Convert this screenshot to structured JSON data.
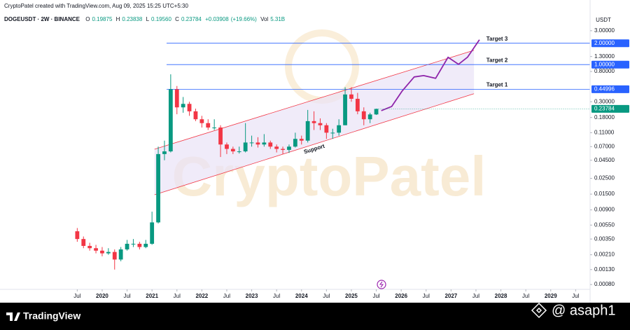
{
  "chart_data": {
    "type": "candlestick",
    "attribution": "CryptoPatel created with TradingView.com, Aug 09, 2025 15:25 UTC+5:30",
    "symbol": "DOGEUSDT · 2W · BINANCE",
    "legend_names": [
      "O",
      "H",
      "L",
      "C"
    ],
    "legend_value_labels": [
      "0.19875",
      "0.23838",
      "0.19560",
      "0.23784"
    ],
    "change": "+0.03908",
    "change_pct": "(+19.66%)",
    "volume_name": "Vol",
    "volume": "5.31B",
    "currency": "USDT",
    "watermark": "CryptoPatel",
    "brand": "TradingView",
    "credit": "@ asaph1",
    "log": true,
    "grid": false,
    "up_color": "#089981",
    "down_color": "#f23645",
    "x": [
      2019.5,
      2019.625,
      2019.75,
      2019.875,
      2020,
      2020.125,
      2020.25,
      2020.375,
      2020.5,
      2020.625,
      2020.75,
      2020.875,
      2021,
      2021.125,
      2021.25,
      2021.375,
      2021.5,
      2021.625,
      2021.75,
      2021.875,
      2022,
      2022.125,
      2022.25,
      2022.375,
      2022.5,
      2022.625,
      2022.75,
      2022.875,
      2023,
      2023.125,
      2023.25,
      2023.375,
      2023.5,
      2023.625,
      2023.75,
      2023.875,
      2024,
      2024.125,
      2024.25,
      2024.375,
      2024.5,
      2024.625,
      2024.75,
      2024.875,
      2025,
      2025.125,
      2025.25,
      2025.375,
      2025.5
    ],
    "open": [
      0.0045,
      0.0035,
      0.0028,
      0.0026,
      0.0024,
      0.0022,
      0.0023,
      0.0018,
      0.0025,
      0.003,
      0.003,
      0.0027,
      0.003,
      0.006,
      0.055,
      0.06,
      0.45,
      0.25,
      0.28,
      0.22,
      0.17,
      0.15,
      0.13,
      0.13,
      0.075,
      0.065,
      0.06,
      0.06,
      0.08,
      0.08,
      0.075,
      0.08,
      0.07,
      0.065,
      0.063,
      0.07,
      0.09,
      0.085,
      0.16,
      0.15,
      0.14,
      0.11,
      0.11,
      0.14,
      0.38,
      0.33,
      0.22,
      0.17,
      0.19875
    ],
    "high": [
      0.005,
      0.0038,
      0.0031,
      0.0029,
      0.0027,
      0.0026,
      0.0025,
      0.0027,
      0.0034,
      0.0035,
      0.0032,
      0.0034,
      0.0085,
      0.07,
      0.085,
      0.73,
      0.5,
      0.35,
      0.3,
      0.24,
      0.19,
      0.17,
      0.17,
      0.14,
      0.08,
      0.07,
      0.07,
      0.15,
      0.1,
      0.095,
      0.105,
      0.085,
      0.075,
      0.07,
      0.075,
      0.11,
      0.1,
      0.23,
      0.22,
      0.175,
      0.15,
      0.125,
      0.17,
      0.48,
      0.48,
      0.4,
      0.25,
      0.21,
      0.23838
    ],
    "low": [
      0.0032,
      0.0026,
      0.0024,
      0.0022,
      0.002,
      0.0021,
      0.0013,
      0.0017,
      0.0024,
      0.0027,
      0.0025,
      0.0026,
      0.0029,
      0.0058,
      0.045,
      0.058,
      0.2,
      0.21,
      0.19,
      0.16,
      0.13,
      0.12,
      0.12,
      0.05,
      0.055,
      0.055,
      0.056,
      0.058,
      0.07,
      0.068,
      0.07,
      0.065,
      0.058,
      0.055,
      0.057,
      0.068,
      0.075,
      0.08,
      0.12,
      0.12,
      0.09,
      0.09,
      0.1,
      0.14,
      0.3,
      0.2,
      0.14,
      0.15,
      0.1956
    ],
    "close": [
      0.0035,
      0.0028,
      0.0026,
      0.0024,
      0.0022,
      0.0023,
      0.0018,
      0.0025,
      0.003,
      0.003,
      0.0027,
      0.003,
      0.006,
      0.055,
      0.06,
      0.45,
      0.25,
      0.28,
      0.22,
      0.17,
      0.15,
      0.13,
      0.13,
      0.075,
      0.065,
      0.06,
      0.06,
      0.08,
      0.08,
      0.075,
      0.08,
      0.07,
      0.065,
      0.063,
      0.07,
      0.09,
      0.085,
      0.16,
      0.15,
      0.14,
      0.11,
      0.11,
      0.14,
      0.38,
      0.33,
      0.22,
      0.17,
      0.19875,
      0.23784
    ],
    "xlim": [
      2017.95,
      2029.79
    ],
    "xticks": [
      {
        "value": 2019.5,
        "label": "Jul"
      },
      2020,
      {
        "value": 2020.5,
        "label": "Jul"
      },
      2021,
      {
        "value": 2021.5,
        "label": "Jul"
      },
      2022,
      {
        "value": 2022.5,
        "label": "Jul"
      },
      2023,
      {
        "value": 2023.5,
        "label": "Jul"
      },
      2024,
      {
        "value": 2024.5,
        "label": "Jul"
      },
      2025,
      {
        "value": 2025.5,
        "label": "Jul"
      },
      2026,
      {
        "value": 2026.5,
        "label": "Jul"
      },
      2027,
      {
        "value": 2027.5,
        "label": "Jul"
      },
      2028,
      {
        "value": 2028.5,
        "label": "Jul"
      },
      2029,
      {
        "value": 2029.5,
        "label": "Jul"
      }
    ],
    "ylim": [
      0.0007,
      4.5
    ],
    "yticks": [
      {
        "value": 3,
        "label": "3.00000"
      },
      {
        "value": 1.3,
        "label": "1.30000"
      },
      {
        "value": 0.8,
        "label": "0.80000"
      },
      {
        "value": 0.3,
        "label": "0.30000"
      },
      {
        "value": 0.18,
        "label": "0.18000"
      },
      {
        "value": 0.11,
        "label": "0.11000"
      },
      {
        "value": 0.07,
        "label": "0.07000"
      },
      {
        "value": 0.045,
        "label": "0.04500"
      },
      {
        "value": 0.025,
        "label": "0.02500"
      },
      {
        "value": 0.015,
        "label": "0.01500"
      },
      {
        "value": 0.009,
        "label": "0.00900"
      },
      {
        "value": 0.0055,
        "label": "0.00550"
      },
      {
        "value": 0.0035,
        "label": "0.00350"
      },
      {
        "value": 0.0021,
        "label": "0.00210"
      },
      {
        "value": 0.0013,
        "label": "0.00130"
      },
      {
        "value": 0.0008,
        "label": "0.00080"
      }
    ],
    "levels": [
      {
        "name": "Target 3",
        "value": 2,
        "value_label": "2.00000",
        "color": "#2962ff"
      },
      {
        "name": "Target 2",
        "value": 1,
        "value_label": "1.00000",
        "color": "#2962ff"
      },
      {
        "name": "Target 1",
        "value": 0.44996,
        "color": "#2962ff"
      }
    ],
    "channel": {
      "color": "#f23645",
      "fill": "#e9e3f7",
      "upper": {
        "x": [
          2021.05,
          2027.46
        ],
        "y": [
          0.0644,
          1.59
        ]
      },
      "lower": {
        "x": [
          2021.05,
          2027.46
        ],
        "y": [
          0.0147,
          0.389
        ]
      }
    },
    "support_label": "Support",
    "projection": {
      "color": "#8e24aa",
      "x": [
        2025.6,
        2025.81,
        2026.02,
        2026.26,
        2026.45,
        2026.69,
        2026.94,
        2027.15,
        2027.33,
        2027.57
      ],
      "y": [
        0.225,
        0.258,
        0.426,
        0.671,
        0.7,
        0.641,
        1.27,
        1.01,
        1.27,
        2.24
      ]
    }
  }
}
